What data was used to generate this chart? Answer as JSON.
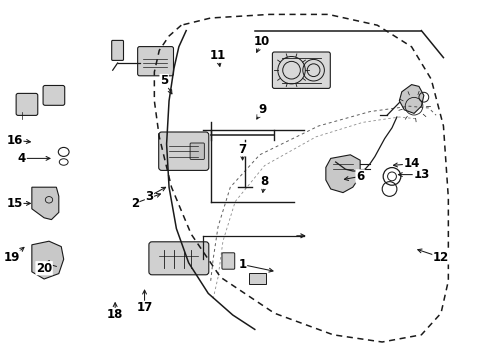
{
  "background_color": "#ffffff",
  "line_color": "#1a1a1a",
  "figsize": [
    4.9,
    3.6
  ],
  "dpi": 100,
  "label_map": {
    "1": [
      0.495,
      0.735,
      0.565,
      0.755
    ],
    "2": [
      0.275,
      0.565,
      0.335,
      0.535
    ],
    "3": [
      0.305,
      0.545,
      0.345,
      0.515
    ],
    "4": [
      0.045,
      0.44,
      0.11,
      0.44
    ],
    "5": [
      0.335,
      0.225,
      0.355,
      0.27
    ],
    "6": [
      0.735,
      0.49,
      0.695,
      0.5
    ],
    "7": [
      0.495,
      0.415,
      0.495,
      0.455
    ],
    "8": [
      0.54,
      0.505,
      0.535,
      0.545
    ],
    "9": [
      0.535,
      0.305,
      0.52,
      0.34
    ],
    "10": [
      0.535,
      0.115,
      0.52,
      0.155
    ],
    "11": [
      0.445,
      0.155,
      0.45,
      0.195
    ],
    "12": [
      0.9,
      0.715,
      0.845,
      0.69
    ],
    "13": [
      0.86,
      0.485,
      0.805,
      0.485
    ],
    "14": [
      0.84,
      0.455,
      0.795,
      0.46
    ],
    "15": [
      0.03,
      0.565,
      0.07,
      0.565
    ],
    "16": [
      0.03,
      0.39,
      0.07,
      0.395
    ],
    "17": [
      0.295,
      0.855,
      0.295,
      0.795
    ],
    "18": [
      0.235,
      0.875,
      0.235,
      0.83
    ],
    "19": [
      0.025,
      0.715,
      0.055,
      0.68
    ],
    "20": [
      0.09,
      0.745,
      0.105,
      0.715
    ]
  }
}
